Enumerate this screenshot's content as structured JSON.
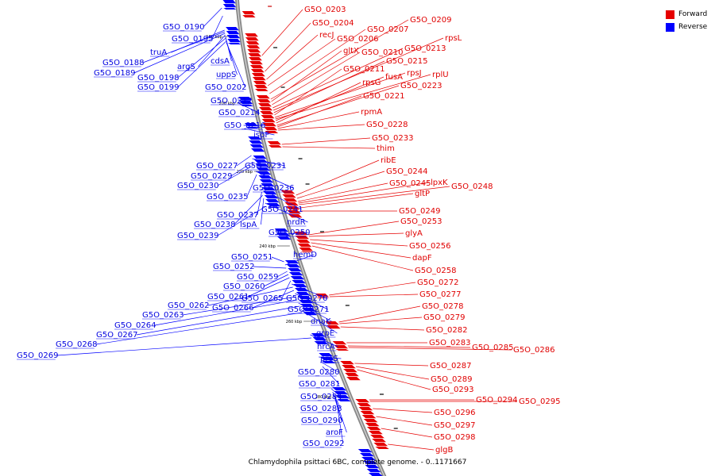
{
  "caption": "Chlamydophila psittaci 6BC, complete genome. - 0..1171667",
  "legend": {
    "forward": {
      "label": "Forward",
      "color": "#e60000"
    },
    "reverse": {
      "label": "Reverse",
      "color": "#0000ff"
    }
  },
  "ticks": [
    "180 kbp",
    "200 kbp",
    "220 kbp",
    "240 kbp",
    "260 kbp",
    "280 kbp"
  ],
  "forward_genes": [
    "G5O_0203",
    "G5O_0204",
    "recJ",
    "G5O_0206",
    "G5O_0207",
    "G5O_0209",
    "gltX",
    "G5O_0210",
    "G5O_0213",
    "rpsL",
    "G5O_0215",
    "G5O_0211",
    "rpsJ",
    "rplU",
    "fusA",
    "rpsG",
    "G5O_0223",
    "G5O_0221",
    "rpmA",
    "G5O_0228",
    "G5O_0233",
    "thim",
    "ribE",
    "G5O_0244",
    "G5O_0245",
    "lpxK",
    "G5O_0248",
    "gltP",
    "G5O_0249",
    "G5O_0253",
    "glyA",
    "G5O_0256",
    "dapF",
    "G5O_0258",
    "G5O_0272",
    "G5O_0277",
    "G5O_0278",
    "G5O_0279",
    "G5O_0282",
    "G5O_0283",
    "G5O_0285",
    "G5O_0286",
    "G5O_0287",
    "G5O_0289",
    "G5O_0293",
    "G5O_0294",
    "G5O_0295",
    "G5O_0296",
    "G5O_0297",
    "G5O_0298",
    "glgB"
  ],
  "reverse_genes": [
    "G5O_0190",
    "G5O_0195",
    "truA",
    "G5O_0188",
    "G5O_0189",
    "argS",
    "cdsA",
    "G5O_0198",
    "uppS",
    "G5O_0199",
    "G5O_0202",
    "G5O_0212",
    "G5O_0214",
    "G5O_0216",
    "ispF",
    "G5O_0227",
    "G5O_0231",
    "G5O_0229",
    "G5O_0230",
    "G5O_0236",
    "G5O_0235",
    "G5O_0241",
    "G5O_0237",
    "G5O_0238",
    "lspA",
    "nrdR",
    "G5O_0239",
    "G5O_0250",
    "G5O_0251",
    "hemD",
    "G5O_0252",
    "G5O_0259",
    "G5O_0260",
    "G5O_0261",
    "G5O_0265",
    "G5O_0270",
    "G5O_0262",
    "G5O_0266",
    "G5O_0271",
    "G5O_0263",
    "G5O_0264",
    "dnaK",
    "G5O_0267",
    "grpE",
    "G5O_0268",
    "hrcA",
    "G5O_0269",
    "proS",
    "G5O_0280",
    "G5O_0281",
    "G5O_0284",
    "G5O_0288",
    "G5O_0290",
    "aroF",
    "G5O_0292"
  ]
}
